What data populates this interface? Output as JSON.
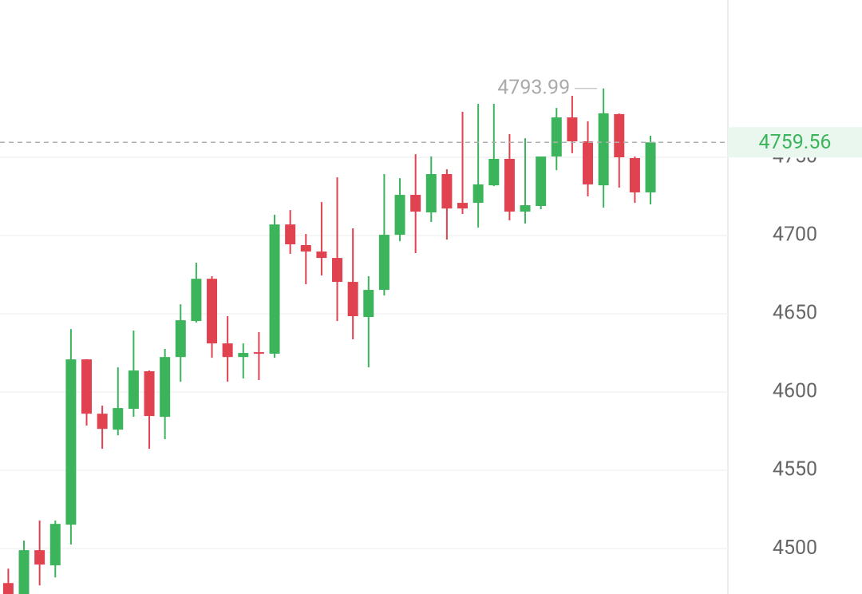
{
  "chart_data": {
    "type": "candlestick",
    "open": [
      4478,
      4465,
      4499.0,
      4489.3,
      4515.3,
      4620.9,
      4586.2,
      4576.0,
      4589.3,
      4613.3,
      4584.2,
      4622.4,
      4645.4,
      4672.4,
      4631.1,
      4622.4,
      4625.5,
      4624.5,
      4707.1,
      4693.9,
      4689.8,
      4685.7,
      4670.4,
      4648.0,
      4665.3,
      4700.5,
      4726.0,
      4714.8,
      4739.3,
      4720.9,
      4720.9,
      4732.1,
      4749.0,
      4715.3,
      4718.9,
      4750.5,
      4775.5,
      4760.2,
      4732.1,
      4777.6,
      4749.5,
      4727.6
    ],
    "high": [
      4487.2,
      4505.1,
      4517.9,
      4517.9,
      4640.3,
      4621.0,
      4591.3,
      4615.8,
      4639.3,
      4613.8,
      4627.6,
      4656.1,
      4682.7,
      4674.0,
      4648.5,
      4631.1,
      4638.3,
      4713.3,
      4716.3,
      4701.0,
      4721.4,
      4737.2,
      4704.6,
      4674.0,
      4739.3,
      4736.7,
      4752.0,
      4750.5,
      4742.3,
      4779.1,
      4784.2,
      4784.2,
      4764.8,
      4762.2,
      4750.5,
      4781.6,
      4789.3,
      4773.0,
      4793.99,
      4778.0,
      4750.5,
      4763.8
    ],
    "low": [
      4460,
      4460,
      4476.5,
      4481.6,
      4502.6,
      4578.6,
      4563.8,
      4572.4,
      4584.2,
      4563.8,
      4569.9,
      4606.6,
      4644.4,
      4621.9,
      4606.6,
      4608.7,
      4607.7,
      4621.9,
      4688.3,
      4668.9,
      4674.5,
      4645.4,
      4633.7,
      4615.8,
      4661.7,
      4696.4,
      4688.8,
      4708.7,
      4697.4,
      4713.8,
      4705.1,
      4731.6,
      4709.7,
      4707.7,
      4716.8,
      4741.8,
      4752.6,
      4725.0,
      4717.9,
      4730.6,
      4720.9,
      4719.9
    ],
    "close": [
      4465,
      4499.0,
      4489.8,
      4515.8,
      4620.9,
      4586.2,
      4576.5,
      4589.8,
      4613.8,
      4584.7,
      4622.4,
      4645.9,
      4672.4,
      4631.1,
      4622.4,
      4625.0,
      4624.5,
      4707.1,
      4694.4,
      4689.8,
      4685.7,
      4670.4,
      4648.5,
      4665.3,
      4700.5,
      4726.0,
      4715.3,
      4739.3,
      4717.3,
      4717.3,
      4732.7,
      4749.0,
      4715.3,
      4719.4,
      4750.5,
      4775.5,
      4760.2,
      4732.7,
      4778.1,
      4750.0,
      4727.6,
      4759.56
    ],
    "up_color": "#3cb45c",
    "down_color": "#e0424f",
    "ylim": [
      4471,
      4850.5
    ],
    "yticks": [
      4500,
      4550,
      4600,
      4650,
      4700,
      4750
    ],
    "grid": true
  }
}
